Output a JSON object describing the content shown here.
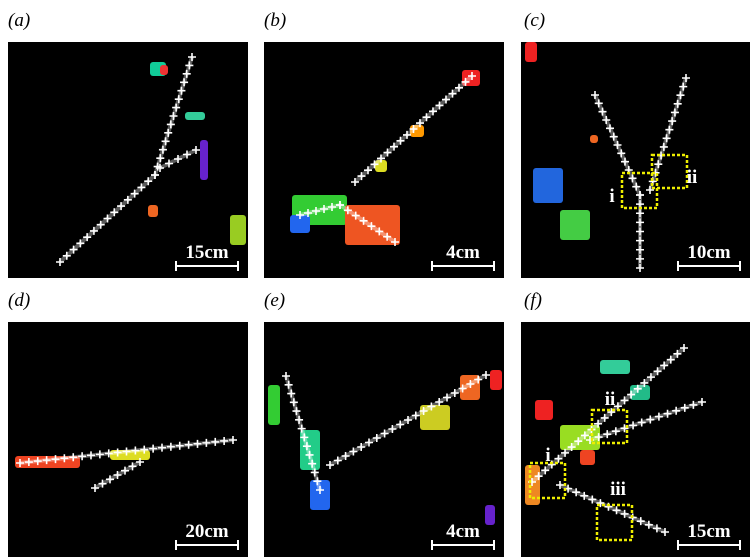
{
  "panels": [
    {
      "label": "(a)",
      "scale_bar": "15cm"
    },
    {
      "label": "(b)",
      "scale_bar": "4cm"
    },
    {
      "label": "(c)",
      "scale_bar": "10cm",
      "annotations": [
        "i",
        "ii"
      ]
    },
    {
      "label": "(d)",
      "scale_bar": "20cm"
    },
    {
      "label": "(e)",
      "scale_bar": "4cm"
    },
    {
      "label": "(f)",
      "scale_bar": "15cm",
      "annotations": [
        "i",
        "ii",
        "iii"
      ]
    }
  ]
}
